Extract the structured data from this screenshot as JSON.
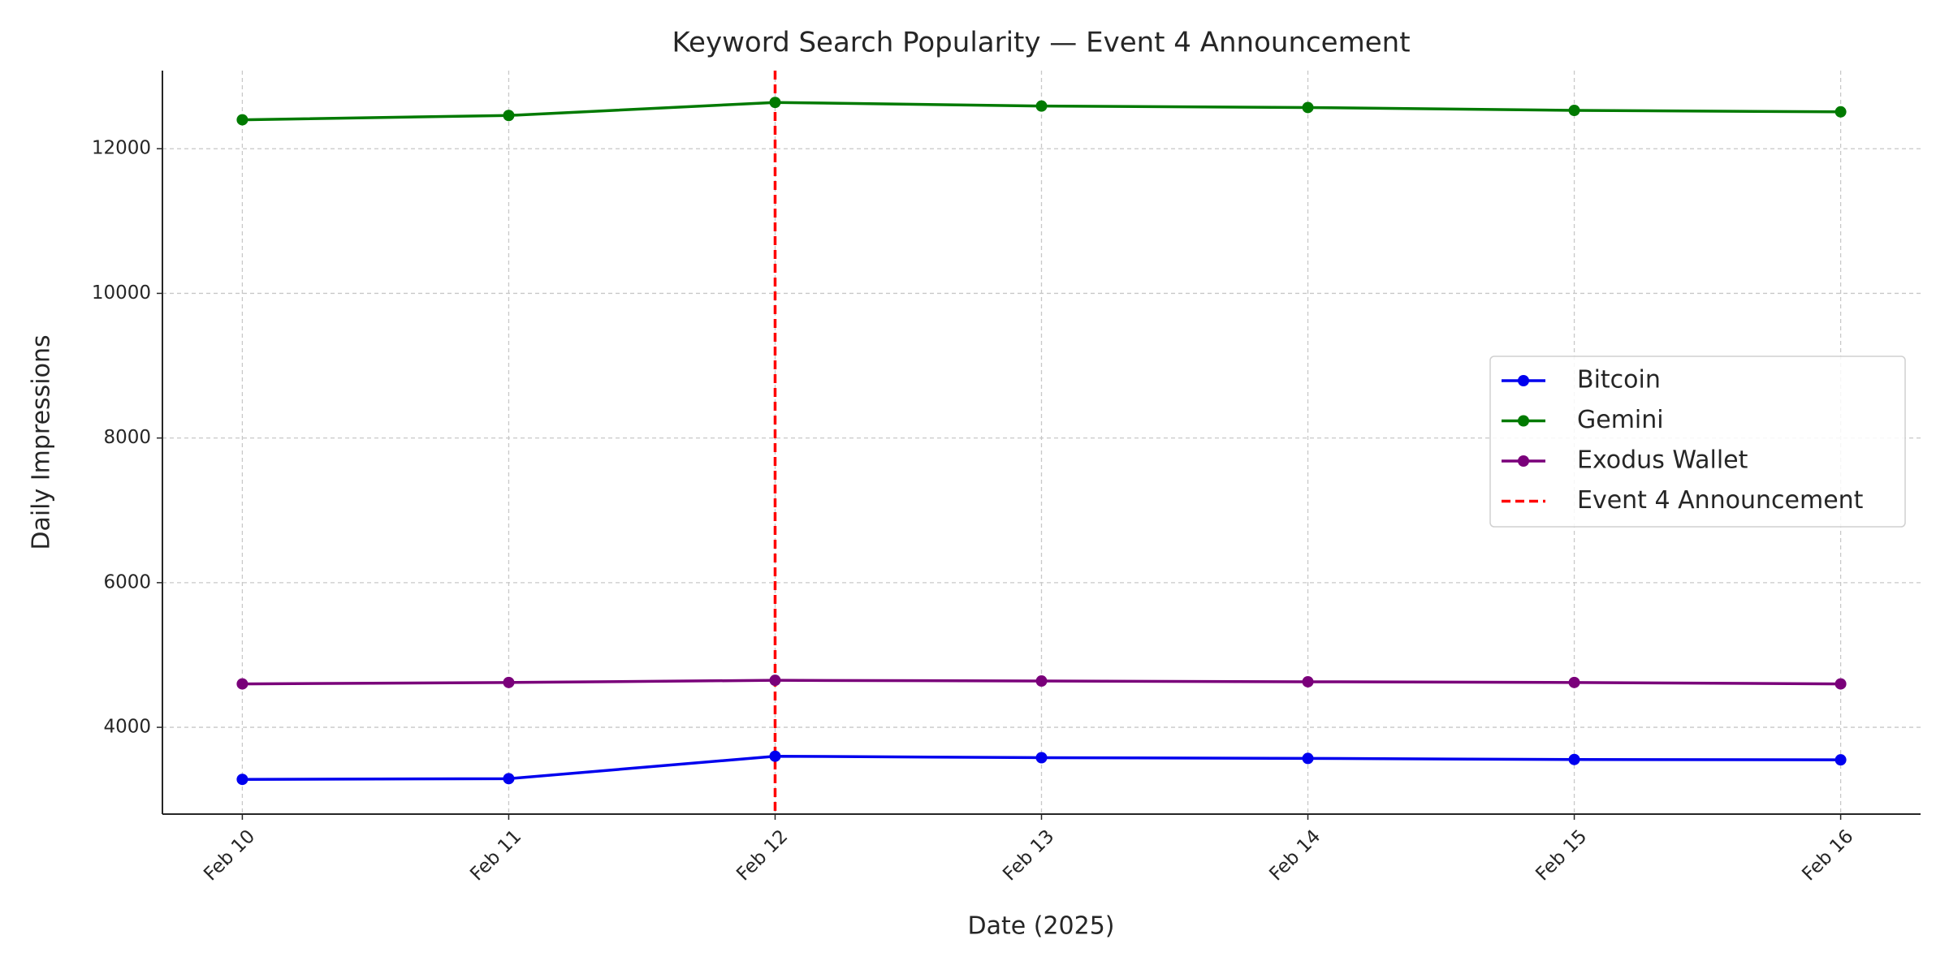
{
  "chart_data": {
    "type": "line",
    "title": "Keyword Search Popularity — Event 4 Announcement",
    "x_label": "Date (2025)",
    "y_label": "Daily Impressions",
    "categories": [
      "Feb 10",
      "Feb 11",
      "Feb 12",
      "Feb 13",
      "Feb 14",
      "Feb 15",
      "Feb 16"
    ],
    "series": [
      {
        "name": "Bitcoin",
        "color": "#0000ee",
        "values": [
          3280,
          3290,
          3600,
          3580,
          3570,
          3555,
          3550
        ]
      },
      {
        "name": "Gemini",
        "color": "#007a00",
        "values": [
          12400,
          12460,
          12640,
          12590,
          12570,
          12530,
          12510
        ]
      },
      {
        "name": "Exodus Wallet",
        "color": "#7a007a",
        "values": [
          4600,
          4620,
          4650,
          4640,
          4630,
          4620,
          4600
        ]
      }
    ],
    "event": {
      "label": "Event 4 Announcement",
      "category": "Feb 12",
      "color": "#ff0000"
    },
    "ylim": [
      2800,
      13080
    ],
    "yticks": [
      4000,
      6000,
      8000,
      10000,
      12000
    ],
    "grid": true,
    "legend": "right"
  }
}
